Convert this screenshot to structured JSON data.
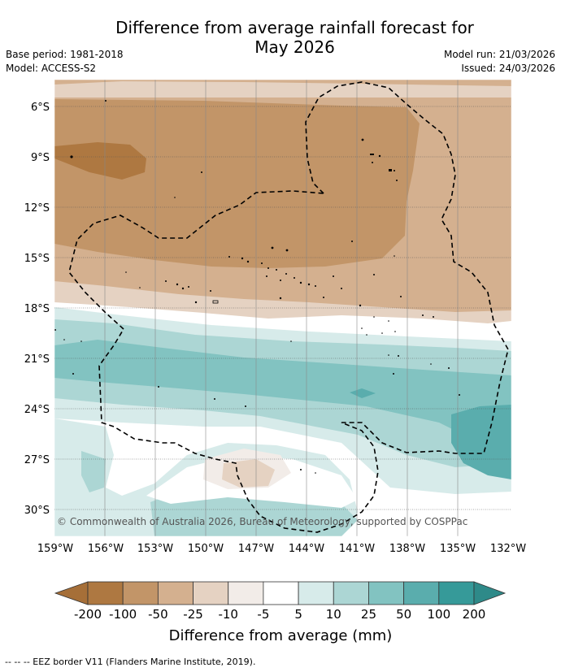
{
  "title_line1": "Difference from average rainfall forecast for",
  "title_line2": "May 2026",
  "base_period": "Base period: 1981-2018",
  "model": "Model: ACCESS-S2",
  "model_run": "Model run: 21/03/2026",
  "issued": "Issued: 24/03/2026",
  "copyright": "© Commonwealth of Australia 2026, Bureau of Meteorology, supported by COSPPac",
  "latitudes": [
    "6°S",
    "9°S",
    "12°S",
    "15°S",
    "18°S",
    "21°S",
    "24°S",
    "27°S",
    "30°S"
  ],
  "longitudes": [
    "159°W",
    "156°W",
    "153°W",
    "150°W",
    "147°W",
    "144°W",
    "141°W",
    "138°W",
    "135°W",
    "132°W"
  ],
  "legend": {
    "title": "Difference from average (mm)",
    "labels": [
      "-200",
      "-100",
      "-50",
      "-25",
      "-10",
      "-5",
      "5",
      "10",
      "25",
      "50",
      "100",
      "200"
    ],
    "colors": [
      "#a66f38",
      "#ae7841",
      "#c29568",
      "#d4b08f",
      "#e5d2c2",
      "#f2ece8",
      "#ffffff",
      "#d7ebea",
      "#acd6d4",
      "#82c3c1",
      "#5aadad",
      "#369a99",
      "#2e8a89"
    ]
  },
  "footer": "--  --  -- EEZ border V11 (Flanders Marine Institute, 2019)."
}
